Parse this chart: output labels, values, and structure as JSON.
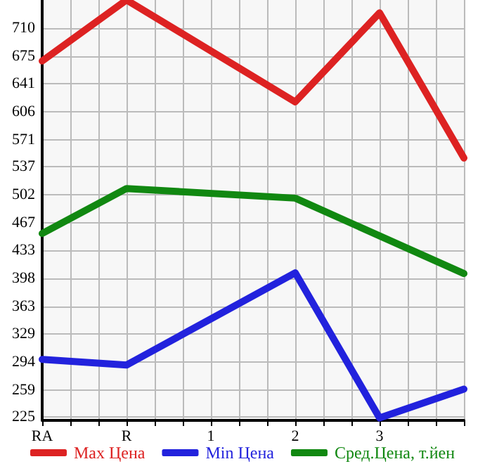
{
  "chart_data": {
    "type": "line",
    "categories": [
      "RA",
      "R",
      "1",
      "2",
      "3",
      null
    ],
    "series": [
      {
        "name": "Max Цена",
        "color": "#dd2222",
        "values": [
          669,
          745,
          null,
          618,
          729,
          548
        ]
      },
      {
        "name": "Min Цена",
        "color": "#2222dd",
        "values": [
          297,
          290,
          null,
          405,
          224,
          260
        ]
      },
      {
        "name": "Сред.Цена, т.йен",
        "color": "#118811",
        "values": [
          454,
          510,
          null,
          498,
          null,
          404
        ]
      }
    ],
    "ylim": [
      221,
      745
    ],
    "yticks": [
      225,
      259,
      294,
      329,
      363,
      398,
      433,
      467,
      502,
      537,
      571,
      606,
      641,
      675,
      710
    ],
    "grid": true,
    "legend": "bottom",
    "marker": "none",
    "line_style": "solid"
  }
}
